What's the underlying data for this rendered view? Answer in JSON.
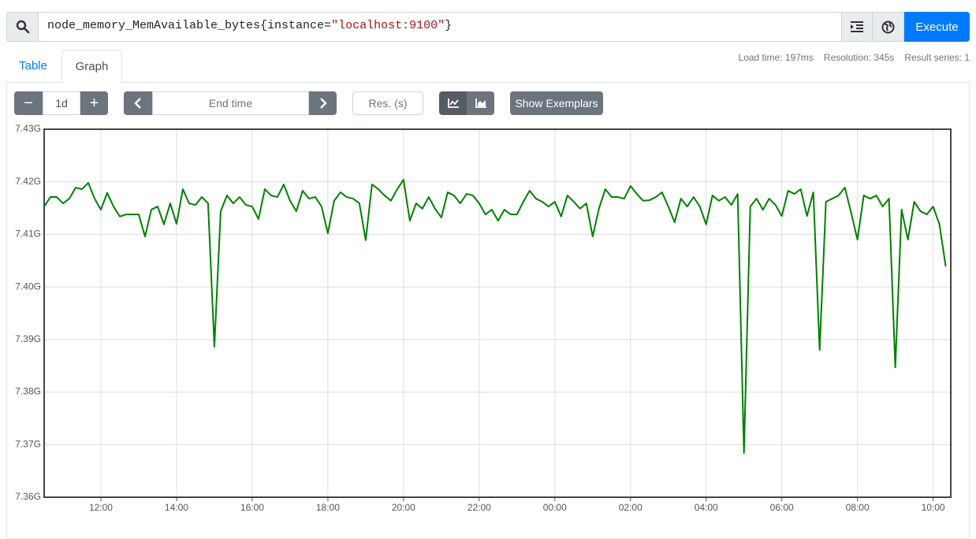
{
  "query": {
    "metric": "node_memory_MemAvailable_bytes{instance=",
    "value": "\"localhost:9100\"",
    "close": "}"
  },
  "buttons": {
    "execute": "Execute",
    "exemplars": "Show Exemplars"
  },
  "tabs": {
    "table": "Table",
    "graph": "Graph"
  },
  "stats": {
    "load_time": "Load time: 197ms",
    "resolution": "Resolution: 345s",
    "result_series": "Result series: 1"
  },
  "controls": {
    "range": "1d",
    "end_time": "End time",
    "res": "Res. (s)"
  },
  "chart_data": {
    "type": "line",
    "color": "#008000",
    "grid": true,
    "x": [
      "10:30",
      "10:40",
      "10:50",
      "11:00",
      "11:10",
      "11:20",
      "11:30",
      "11:40",
      "11:50",
      "12:00",
      "12:10",
      "12:20",
      "12:30",
      "12:40",
      "12:50",
      "13:00",
      "13:10",
      "13:20",
      "13:30",
      "13:40",
      "13:50",
      "14:00",
      "14:10",
      "14:20",
      "14:30",
      "14:40",
      "14:50",
      "15:00",
      "15:10",
      "15:20",
      "15:30",
      "15:40",
      "15:50",
      "16:00",
      "16:10",
      "16:20",
      "16:30",
      "16:40",
      "16:50",
      "17:00",
      "17:10",
      "17:20",
      "17:30",
      "17:40",
      "17:50",
      "18:00",
      "18:10",
      "18:20",
      "18:30",
      "18:40",
      "18:50",
      "19:00",
      "19:10",
      "19:20",
      "19:30",
      "19:40",
      "19:50",
      "20:00",
      "20:10",
      "20:20",
      "20:30",
      "20:40",
      "20:50",
      "21:00",
      "21:10",
      "21:20",
      "21:30",
      "21:40",
      "21:50",
      "22:00",
      "22:10",
      "22:20",
      "22:30",
      "22:40",
      "22:50",
      "23:00",
      "23:10",
      "23:20",
      "23:30",
      "23:40",
      "23:50",
      "00:00",
      "00:10",
      "00:20",
      "00:30",
      "00:40",
      "00:50",
      "01:00",
      "01:10",
      "01:20",
      "01:30",
      "01:40",
      "01:50",
      "02:00",
      "02:10",
      "02:20",
      "02:30",
      "02:40",
      "02:50",
      "03:00",
      "03:10",
      "03:20",
      "03:30",
      "03:40",
      "03:50",
      "04:00",
      "04:10",
      "04:20",
      "04:30",
      "04:40",
      "04:50",
      "05:00",
      "05:10",
      "05:20",
      "05:30",
      "05:40",
      "05:50",
      "06:00",
      "06:10",
      "06:20",
      "06:30",
      "06:40",
      "06:50",
      "07:00",
      "07:10",
      "07:20",
      "07:30",
      "07:40",
      "07:50",
      "08:00",
      "08:10",
      "08:20",
      "08:30",
      "08:40",
      "08:50",
      "09:00",
      "09:10",
      "09:20",
      "09:30",
      "09:40",
      "09:50",
      "10:00",
      "10:10",
      "10:20"
    ],
    "values": [
      7.4153,
      7.4171,
      7.4171,
      7.4159,
      7.4168,
      7.4189,
      7.4186,
      7.4198,
      7.4168,
      7.4147,
      7.4179,
      7.4153,
      7.4134,
      7.4138,
      7.4138,
      7.4138,
      7.4096,
      7.4147,
      7.4153,
      7.4119,
      7.4159,
      7.412,
      7.4186,
      7.4159,
      7.4156,
      7.4171,
      7.4159,
      7.3886,
      7.4144,
      7.4174,
      7.4159,
      7.4171,
      7.4156,
      7.4153,
      7.4129,
      7.4186,
      7.4174,
      7.4171,
      7.4195,
      7.4164,
      7.4144,
      7.4183,
      7.4168,
      7.4171,
      7.4153,
      7.4102,
      7.4164,
      7.418,
      7.4171,
      7.4168,
      7.4159,
      7.4089,
      7.4195,
      7.4186,
      7.4174,
      7.4164,
      7.4186,
      7.4204,
      7.4126,
      7.4159,
      7.4149,
      7.4171,
      7.4149,
      7.4132,
      7.418,
      7.4174,
      7.4159,
      7.4177,
      7.4174,
      7.4159,
      7.4138,
      7.4147,
      7.4126,
      7.4147,
      7.4138,
      7.4138,
      7.4162,
      7.4183,
      7.4168,
      7.4162,
      7.4153,
      7.4162,
      7.4134,
      7.4174,
      7.4162,
      7.4149,
      7.4159,
      7.4096,
      7.4149,
      7.4186,
      7.4171,
      7.4171,
      7.4168,
      7.4192,
      7.4177,
      7.4164,
      7.4165,
      7.4171,
      7.418,
      7.4153,
      7.4123,
      7.4168,
      7.4153,
      7.4171,
      7.4153,
      7.4119,
      7.4174,
      7.4164,
      7.4171,
      7.4156,
      7.4177,
      7.3684,
      7.4153,
      7.4168,
      7.4147,
      7.4168,
      7.4156,
      7.4135,
      7.4183,
      7.4177,
      7.4186,
      7.4135,
      7.418,
      7.388,
      7.4162,
      7.4168,
      7.4174,
      7.4189,
      7.4141,
      7.409,
      7.4174,
      7.4168,
      7.4174,
      7.4153,
      7.4168,
      7.3847,
      7.4147,
      7.409,
      7.4162,
      7.4144,
      7.4138,
      7.4153,
      7.4119,
      7.4039
    ],
    "xlim": [
      "10:30",
      "10:28"
    ],
    "xticks": [
      "12:00",
      "14:00",
      "16:00",
      "18:00",
      "20:00",
      "22:00",
      "00:00",
      "02:00",
      "04:00",
      "06:00",
      "08:00",
      "10:00"
    ],
    "ylim": [
      7.36,
      7.43
    ],
    "yticks": [
      {
        "value": 7.36,
        "label": "7.36G"
      },
      {
        "value": 7.37,
        "label": "7.37G"
      },
      {
        "value": 7.38,
        "label": "7.38G"
      },
      {
        "value": 7.39,
        "label": "7.39G"
      },
      {
        "value": 7.4,
        "label": "7.40G"
      },
      {
        "value": 7.41,
        "label": "7.41G"
      },
      {
        "value": 7.42,
        "label": "7.42G"
      },
      {
        "value": 7.43,
        "label": "7.43G"
      }
    ]
  }
}
